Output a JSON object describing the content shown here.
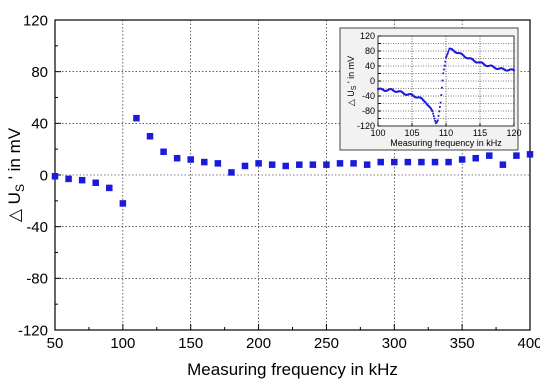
{
  "chart_data": [
    {
      "type": "scatter",
      "title": "",
      "xlabel": "Measuring frequency in kHz",
      "ylabel_parts": {
        "delta": "△ U",
        "sub": "S",
        "rest": " ' in mV"
      },
      "xlim": [
        50,
        400
      ],
      "ylim": [
        -120,
        120
      ],
      "xticks": [
        50,
        100,
        150,
        200,
        250,
        300,
        350,
        400
      ],
      "yticks": [
        -120,
        -80,
        -40,
        0,
        40,
        80,
        120
      ],
      "grid": true,
      "marker": "square",
      "color": "#1a1adc",
      "series": [
        {
          "x": [
            50,
            60,
            70,
            80,
            90,
            100,
            110,
            120,
            130,
            140,
            150,
            160,
            170,
            180,
            190,
            200,
            210,
            220,
            230,
            240,
            250,
            260,
            270,
            280,
            290,
            300,
            310,
            320,
            330,
            340,
            350,
            360,
            370,
            380,
            390,
            400
          ],
          "y": [
            -1,
            -3,
            -4,
            -6,
            -10,
            -22,
            44,
            30,
            18,
            13,
            12,
            10,
            9,
            2,
            7,
            9,
            8,
            7,
            8,
            8,
            8,
            9,
            9,
            8,
            10,
            10,
            10,
            10,
            10,
            10,
            12,
            13,
            15,
            8,
            15,
            16
          ]
        }
      ]
    },
    {
      "type": "scatter",
      "title": "",
      "xlabel": "Measuring frequency in kHz",
      "ylabel_parts": {
        "delta": "△ U",
        "sub": "S",
        "rest": " ' in mV"
      },
      "xlim": [
        100,
        120
      ],
      "ylim": [
        -120,
        120
      ],
      "xticks": [
        100,
        105,
        110,
        115,
        120
      ],
      "yticks": [
        -120,
        -100,
        -80,
        -60,
        -40,
        -20,
        0,
        20,
        40,
        60,
        80,
        100,
        120
      ],
      "grid": true,
      "marker": "square",
      "color": "#1a1adc",
      "series": [
        {
          "curve_points": [
            [
              100,
              -22
            ],
            [
              101,
              -24
            ],
            [
              102,
              -24
            ],
            [
              103,
              -28
            ],
            [
              104,
              -34
            ],
            [
              105,
              -38
            ],
            [
              106,
              -44
            ],
            [
              107,
              -55
            ],
            [
              108,
              -82
            ],
            [
              108.5,
              -110
            ],
            [
              108.8,
              -104
            ],
            [
              109.2,
              -60
            ],
            [
              109.6,
              20
            ],
            [
              110,
              65
            ],
            [
              110.5,
              85
            ],
            [
              111.5,
              78
            ],
            [
              112.5,
              68
            ],
            [
              114,
              55
            ],
            [
              116,
              42
            ],
            [
              118,
              32
            ],
            [
              120,
              28
            ]
          ],
          "x_range": [
            100,
            120
          ],
          "point_count": 200
        }
      ]
    }
  ]
}
